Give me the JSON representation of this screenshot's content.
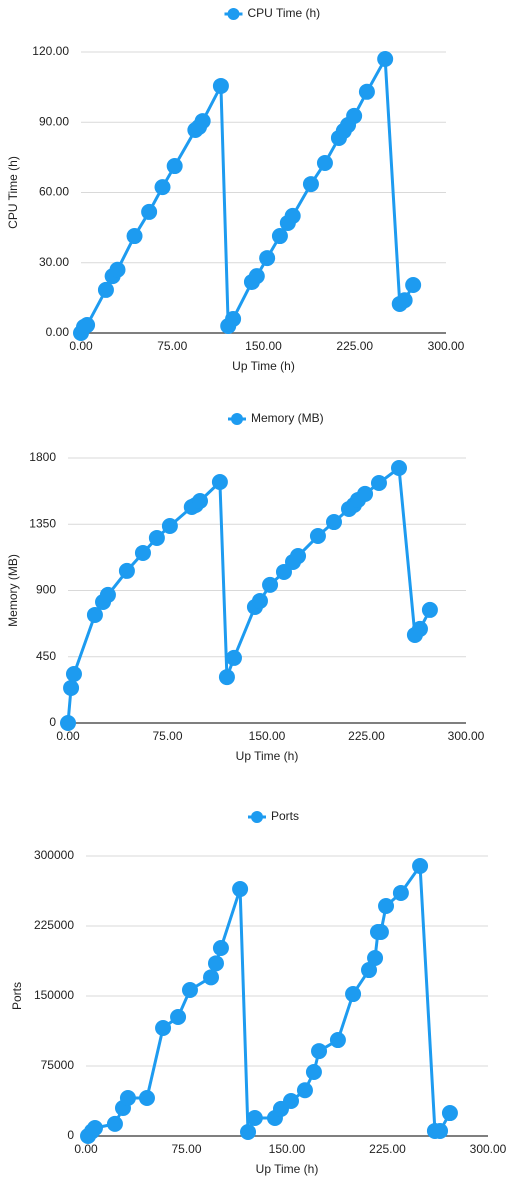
{
  "chart_data": [
    {
      "type": "line",
      "x_label": "Up Time (h)",
      "y_label": "CPU Time (h)",
      "x": [
        0,
        2.5,
        5,
        20.5,
        26,
        30,
        44,
        56,
        67,
        77,
        94,
        97,
        100,
        115,
        121,
        125,
        140.5,
        144.5,
        153,
        163.5,
        170,
        174,
        189,
        200.5,
        212,
        216,
        219.5,
        224.5,
        235,
        250,
        262,
        266,
        273
      ],
      "series": [
        {
          "name": "CPU Time (h)",
          "color": "#1d9bf0",
          "values": [
            0,
            2.6,
            3.4,
            18.4,
            24.3,
            27,
            41.4,
            51.7,
            62.3,
            71.3,
            86.7,
            88,
            90.5,
            105.5,
            3,
            6,
            21.8,
            24.3,
            32,
            41.4,
            47,
            50,
            63.6,
            72.6,
            83.3,
            86.3,
            88.8,
            92.7,
            103,
            117,
            12.4,
            14,
            20.5
          ]
        }
      ],
      "xlim": [
        0,
        300
      ],
      "xticks": [
        {
          "value": 0,
          "label": "0.00"
        },
        {
          "value": 75,
          "label": "75.00"
        },
        {
          "value": 150,
          "label": "150.00"
        },
        {
          "value": 225,
          "label": "225.00"
        },
        {
          "value": 300,
          "label": "300.00"
        }
      ],
      "ylim": [
        0,
        120
      ],
      "yticks": [
        {
          "value": 0,
          "label": "0.00"
        },
        {
          "value": 30,
          "label": "30.00"
        },
        {
          "value": 60,
          "label": "60.00"
        },
        {
          "value": 90,
          "label": "90.00"
        },
        {
          "value": 120,
          "label": "120.00"
        }
      ],
      "grid": true,
      "legend": "top"
    },
    {
      "type": "line",
      "x_label": "Up Time (h)",
      "y_label": "Memory (MB)",
      "x": [
        0,
        2.3,
        4.5,
        20.3,
        26.4,
        30.1,
        44.4,
        56.5,
        67,
        76.8,
        93.3,
        96.3,
        99.5,
        114.5,
        119.8,
        125.1,
        140.9,
        144.7,
        152.3,
        162.8,
        169.6,
        173.4,
        188.4,
        200.5,
        211.8,
        215.6,
        218.6,
        223.9,
        234.4,
        249.5,
        261.5,
        265.3,
        272.8
      ],
      "series": [
        {
          "name": "Memory (MB)",
          "color": "#1d9bf0",
          "values": [
            0,
            238,
            333,
            734,
            822,
            870,
            1033,
            1155,
            1257,
            1338,
            1467,
            1481,
            1508,
            1637,
            312,
            442,
            788,
            829,
            938,
            1026,
            1094,
            1134,
            1270,
            1365,
            1454,
            1481,
            1515,
            1556,
            1630,
            1732,
            598,
            639,
            768
          ]
        }
      ],
      "xlim": [
        0,
        300
      ],
      "xticks": [
        {
          "value": 0,
          "label": "0.00"
        },
        {
          "value": 75,
          "label": "75.00"
        },
        {
          "value": 150,
          "label": "150.00"
        },
        {
          "value": 225,
          "label": "225.00"
        },
        {
          "value": 300,
          "label": "300.00"
        }
      ],
      "ylim": [
        0,
        1800
      ],
      "yticks": [
        0,
        450,
        900,
        1350,
        1800
      ],
      "grid": true,
      "legend": "top"
    },
    {
      "type": "line",
      "x_label": "Up Time (h)",
      "y_label": "Ports",
      "x": [
        1.5,
        4.5,
        6.7,
        21.6,
        27.6,
        31.3,
        45.5,
        57.5,
        68.7,
        77.6,
        93.3,
        97,
        100.7,
        115,
        120.9,
        126,
        141,
        145.5,
        153,
        163.4,
        170.1,
        173.9,
        188,
        199.3,
        211.2,
        215.7,
        217.9,
        220.1,
        223.9,
        235,
        249.3,
        260.4,
        264.2,
        271.6
      ],
      "series": [
        {
          "name": "Ports",
          "color": "#1d9bf0",
          "values": [
            0,
            5000,
            8600,
            13000,
            30000,
            40700,
            40700,
            115700,
            127500,
            156400,
            170000,
            185000,
            201400,
            264600,
            4300,
            19300,
            19300,
            29000,
            37500,
            49000,
            68600,
            91000,
            102800,
            152100,
            177800,
            190700,
            218600,
            218600,
            246400,
            260400,
            289300,
            5400,
            5400,
            24600
          ]
        }
      ],
      "xlim": [
        0,
        300
      ],
      "xticks": [
        {
          "value": 0,
          "label": "0.00"
        },
        {
          "value": 75,
          "label": "75.00"
        },
        {
          "value": 150,
          "label": "150.00"
        },
        {
          "value": 225,
          "label": "225.00"
        },
        {
          "value": 300,
          "label": "300.00"
        }
      ],
      "ylim": [
        0,
        300000
      ],
      "yticks": [
        0,
        75000,
        150000,
        225000,
        300000
      ],
      "grid": true,
      "legend": "top"
    }
  ]
}
